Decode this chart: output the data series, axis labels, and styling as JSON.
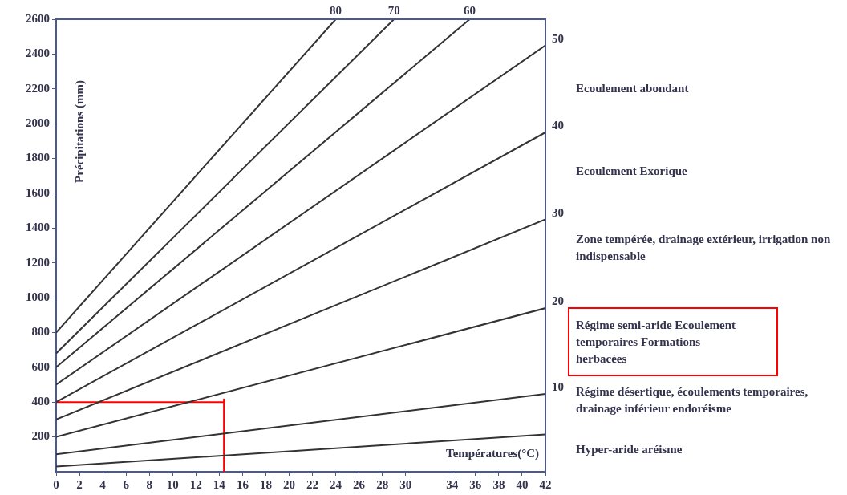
{
  "chart_data": {
    "type": "line",
    "xlabel": "Températures(°C)",
    "ylabel": "Précipitations (mm)",
    "xlim": [
      0,
      42
    ],
    "ylim": [
      0,
      2600
    ],
    "xticks": [
      0,
      2,
      4,
      6,
      8,
      10,
      12,
      14,
      16,
      18,
      20,
      22,
      24,
      26,
      28,
      30,
      34,
      36,
      38,
      40,
      42
    ],
    "yticks": [
      200,
      400,
      600,
      800,
      1000,
      1200,
      1400,
      1600,
      1800,
      2000,
      2200,
      2400,
      2600
    ],
    "grid": false,
    "legend": false,
    "marker": "none",
    "line_style": "solid",
    "annotations": [
      "Ecoulement abondant",
      "Ecoulement Exorique",
      "Zone tempérée, drainage extérieur, irrigation non indispensable",
      "Régime semi-aride Ecoulement temporaires Formations herbacées",
      "Régime désertique, écoulements temporaires, drainage inférieur endoréisme",
      "Hyper-aride aréisme"
    ],
    "series": [
      {
        "name": "80",
        "color": "#333333",
        "x": [
          0,
          24
        ],
        "values": [
          800,
          2600
        ]
      },
      {
        "name": "70",
        "color": "#333333",
        "x": [
          0,
          29
        ],
        "values": [
          680,
          2600
        ]
      },
      {
        "name": "60",
        "color": "#333333",
        "x": [
          0,
          35.5
        ],
        "values": [
          600,
          2600
        ]
      },
      {
        "name": "50",
        "color": "#333333",
        "x": [
          0,
          42
        ],
        "values": [
          500,
          2450
        ]
      },
      {
        "name": "40",
        "color": "#333333",
        "x": [
          0,
          42
        ],
        "values": [
          400,
          1950
        ]
      },
      {
        "name": "30",
        "color": "#333333",
        "x": [
          0,
          42
        ],
        "values": [
          300,
          1450
        ]
      },
      {
        "name": "20",
        "color": "#333333",
        "x": [
          0,
          42
        ],
        "values": [
          200,
          940
        ]
      },
      {
        "name": "10",
        "color": "#333333",
        "x": [
          0,
          42
        ],
        "values": [
          100,
          447
        ]
      },
      {
        "color": "#333333",
        "x": [
          0,
          42
        ],
        "values": [
          30,
          214
        ]
      },
      {
        "color": "#ff0000",
        "x": [
          0,
          14.5
        ],
        "values": [
          400,
          400
        ]
      },
      {
        "color": "#ff0000",
        "x": [
          14.4,
          14.4
        ],
        "values": [
          0,
          420
        ]
      }
    ]
  }
}
